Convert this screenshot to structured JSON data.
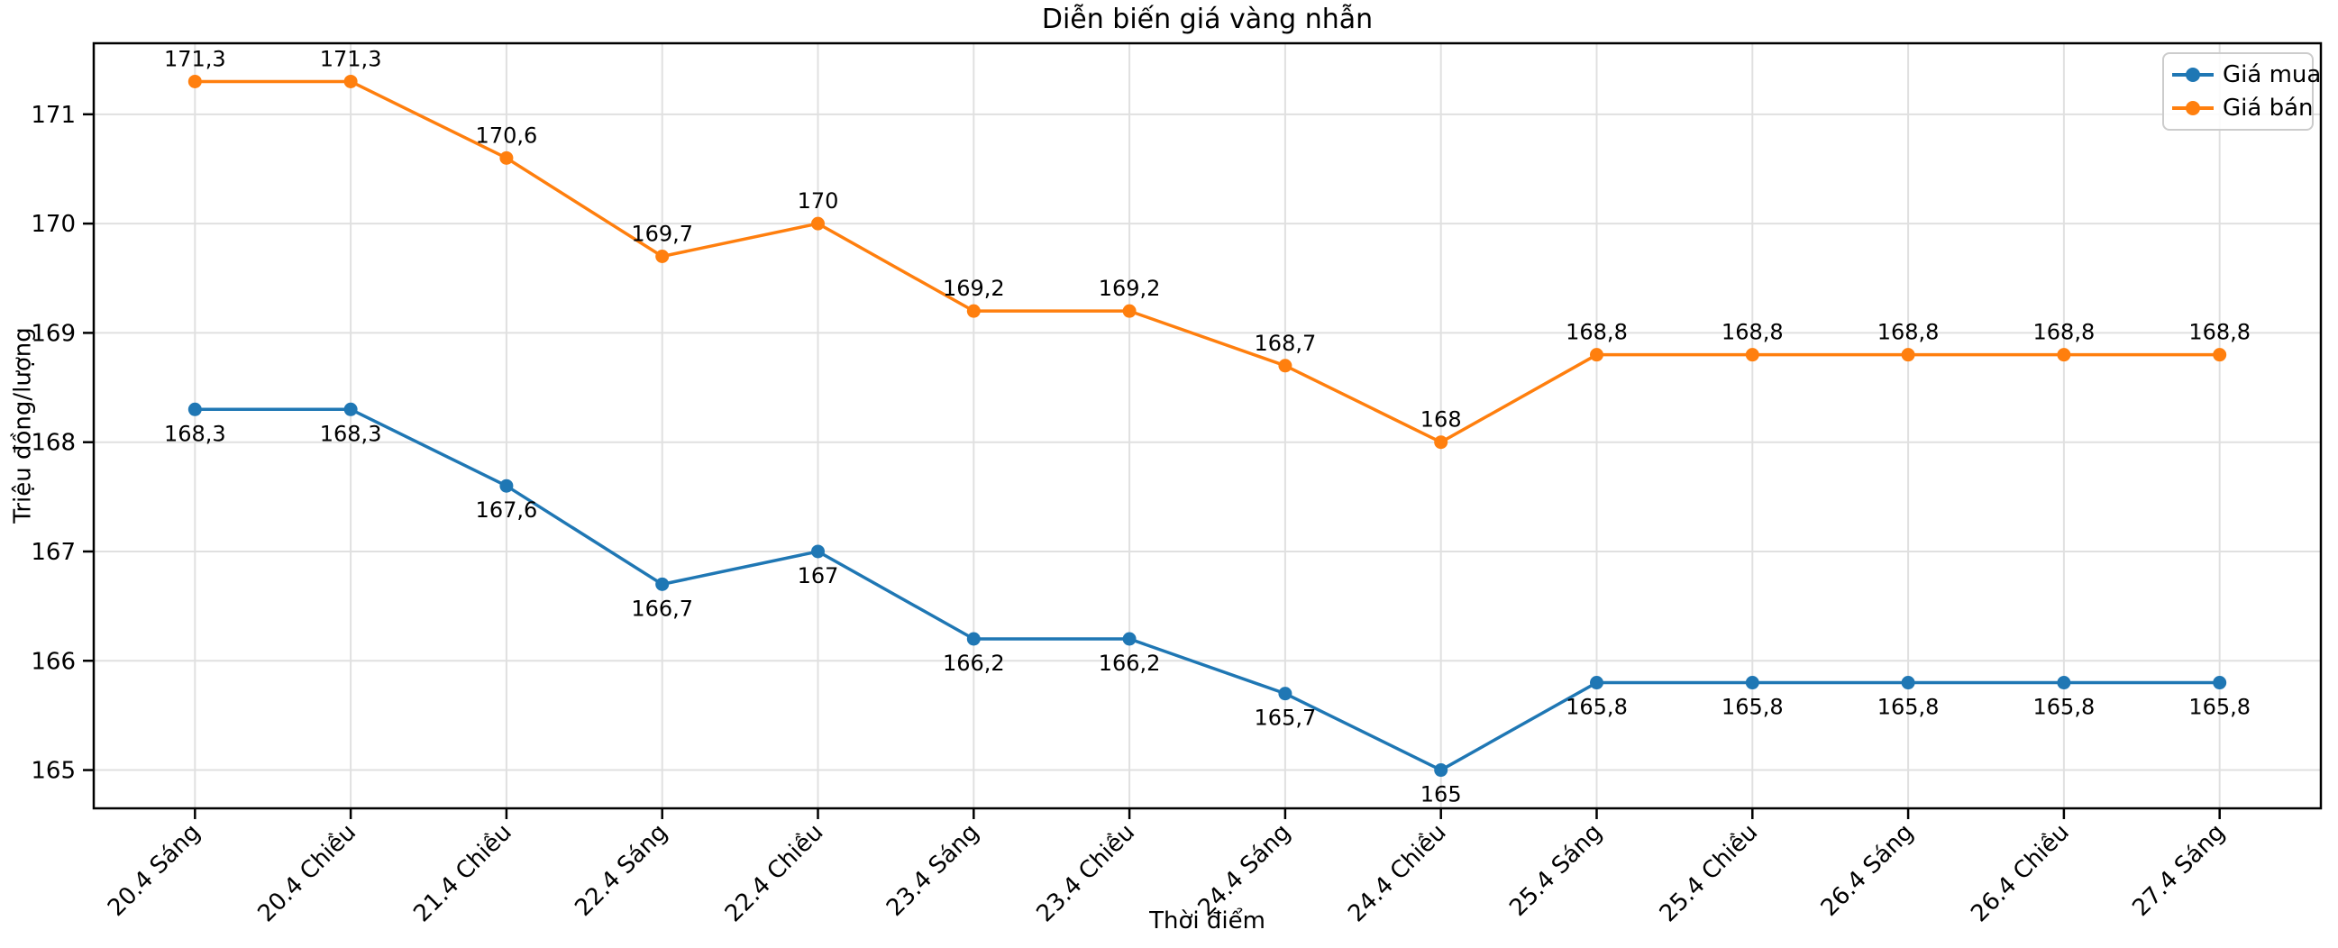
{
  "chart_data": {
    "type": "line",
    "title": "Diễn biến giá vàng nhẫn",
    "xlabel": "Thời điểm",
    "ylabel": "Triệu đồng/lượng",
    "categories": [
      "20.4 Sáng",
      "20.4 Chiều",
      "21.4 Chiều",
      "22.4 Sáng",
      "22.4 Chiều",
      "23.4 Sáng",
      "23.4 Chiều",
      "24.4 Sáng",
      "24.4 Chiều",
      "25.4 Sáng",
      "25.4 Chiều",
      "26.4 Sáng",
      "26.4 Chiều",
      "27.4 Sáng"
    ],
    "series": [
      {
        "name": "Giá mua",
        "color": "#1f77b4",
        "values": [
          168.3,
          168.3,
          167.6,
          166.7,
          167,
          166.2,
          166.2,
          165.7,
          165,
          165.8,
          165.8,
          165.8,
          165.8,
          165.8
        ],
        "point_labels": [
          "168,3",
          "168,3",
          "167,6",
          "166,7",
          "167",
          "166,2",
          "166,2",
          "165,7",
          "165",
          "165,8",
          "165,8",
          "165,8",
          "165,8",
          "165,8"
        ],
        "label_position": "below"
      },
      {
        "name": "Giá bán",
        "color": "#ff7f0e",
        "values": [
          171.3,
          171.3,
          170.6,
          169.7,
          170,
          169.2,
          169.2,
          168.7,
          168,
          168.8,
          168.8,
          168.8,
          168.8,
          168.8
        ],
        "point_labels": [
          "171,3",
          "171,3",
          "170,6",
          "169,7",
          "170",
          "169,2",
          "169,2",
          "168,7",
          "168",
          "168,8",
          "168,8",
          "168,8",
          "168,8",
          "168,8"
        ],
        "label_position": "above"
      }
    ],
    "yticks": [
      165,
      166,
      167,
      168,
      169,
      170,
      171
    ],
    "ylim": [
      164.65,
      171.65
    ],
    "grid": true,
    "legend_position": "upper right",
    "grid_color": "#e0e0e0",
    "axis_color": "#000000"
  }
}
